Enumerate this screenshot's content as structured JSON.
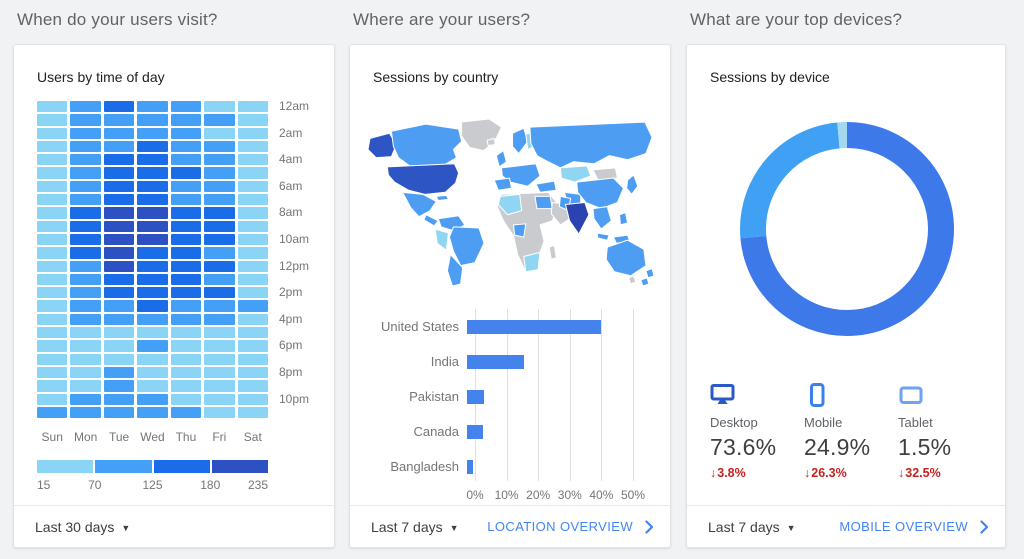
{
  "icons": {
    "dropdown": "▼",
    "chevron_right": "›",
    "down_arrow": "↓"
  },
  "colors": {
    "page_bg": "#f1f2f3",
    "card_bg": "#ffffff",
    "link_blue": "#4285f4",
    "negative_red": "#c5221f",
    "bar_blue": "#4583ec",
    "map_levels": {
      "high": "#2d55c4",
      "highest": "#2a43b0",
      "medium": "#4d9ef3",
      "low": "#90d6f3",
      "none": "#c9cbcf"
    }
  },
  "sections": {
    "visit": {
      "heading": "When do your users visit?",
      "card_title": "Users by time of day",
      "footer": {
        "range": "Last 30 days"
      }
    },
    "geo": {
      "heading": "Where are your users?",
      "card_title": "Sessions by country",
      "footer": {
        "range": "Last 7 days",
        "link": "LOCATION OVERVIEW"
      }
    },
    "devices": {
      "heading": "What are your top devices?",
      "card_title": "Sessions by device",
      "stats": [
        {
          "icon": "desktop-icon",
          "label": "Desktop",
          "value": "73.6%",
          "change": "3.8%",
          "direction": "down"
        },
        {
          "icon": "mobile-icon",
          "label": "Mobile",
          "value": "24.9%",
          "change": "26.3%",
          "direction": "down"
        },
        {
          "icon": "tablet-icon",
          "label": "Tablet",
          "value": "1.5%",
          "change": "32.5%",
          "direction": "down"
        }
      ],
      "footer": {
        "range": "Last 7 days",
        "link": "MOBILE OVERVIEW"
      }
    }
  },
  "chart_data": [
    {
      "type": "heatmap",
      "title": "Users by time of day",
      "x_categories": [
        "Sun",
        "Mon",
        "Tue",
        "Wed",
        "Thu",
        "Fri",
        "Sat"
      ],
      "hour_labels": [
        "12am",
        "2am",
        "4am",
        "6am",
        "8am",
        "10am",
        "12pm",
        "2pm",
        "4pm",
        "6pm",
        "8pm",
        "10pm"
      ],
      "legend_ticks": [
        "15",
        "70",
        "125",
        "180",
        "235"
      ],
      "palette": [
        "#8ad4f6",
        "#43a0f6",
        "#1a6ce9",
        "#2d51c2"
      ],
      "matrix": [
        [
          0,
          1,
          2,
          1,
          1,
          0,
          0
        ],
        [
          0,
          1,
          1,
          1,
          1,
          1,
          0
        ],
        [
          0,
          1,
          1,
          1,
          1,
          0,
          0
        ],
        [
          0,
          1,
          1,
          2,
          1,
          1,
          0
        ],
        [
          0,
          1,
          2,
          2,
          1,
          1,
          0
        ],
        [
          0,
          1,
          2,
          2,
          2,
          1,
          0
        ],
        [
          0,
          1,
          2,
          2,
          1,
          1,
          0
        ],
        [
          0,
          1,
          2,
          2,
          1,
          1,
          0
        ],
        [
          0,
          2,
          3,
          3,
          2,
          2,
          0
        ],
        [
          0,
          2,
          3,
          3,
          2,
          2,
          0
        ],
        [
          0,
          2,
          3,
          3,
          2,
          2,
          0
        ],
        [
          0,
          2,
          3,
          2,
          2,
          1,
          0
        ],
        [
          0,
          1,
          3,
          2,
          2,
          2,
          0
        ],
        [
          0,
          1,
          2,
          2,
          2,
          1,
          0
        ],
        [
          0,
          1,
          2,
          2,
          2,
          2,
          0
        ],
        [
          0,
          1,
          1,
          2,
          1,
          1,
          1
        ],
        [
          0,
          1,
          1,
          1,
          1,
          1,
          0
        ],
        [
          0,
          0,
          0,
          0,
          0,
          0,
          0
        ],
        [
          0,
          0,
          0,
          1,
          0,
          0,
          0
        ],
        [
          0,
          0,
          0,
          0,
          0,
          0,
          0
        ],
        [
          0,
          0,
          1,
          0,
          0,
          0,
          0
        ],
        [
          0,
          0,
          1,
          0,
          0,
          0,
          0
        ],
        [
          0,
          1,
          1,
          1,
          0,
          0,
          0
        ],
        [
          1,
          1,
          1,
          1,
          1,
          0,
          0
        ]
      ]
    },
    {
      "type": "bar",
      "orientation": "horizontal",
      "title": "Sessions by country",
      "categories": [
        "United States",
        "India",
        "Pakistan",
        "Canada",
        "Bangladesh"
      ],
      "values": [
        42.5,
        18,
        5.5,
        5,
        2
      ],
      "unit": "%",
      "xlim": [
        0,
        50
      ],
      "ticks": [
        "0%",
        "10%",
        "20%",
        "30%",
        "40%",
        "50%"
      ],
      "bar_color": "#4583ec",
      "grid": true
    },
    {
      "type": "donut",
      "title": "Sessions by device",
      "series": [
        {
          "name": "Desktop",
          "value": 73.6,
          "color": "#3d79e8"
        },
        {
          "name": "Mobile",
          "value": 24.9,
          "color": "#3fa0f4"
        },
        {
          "name": "Tablet",
          "value": 1.5,
          "color": "#a3d8f1"
        }
      ],
      "start_angle": "top",
      "direction": "clockwise"
    }
  ]
}
